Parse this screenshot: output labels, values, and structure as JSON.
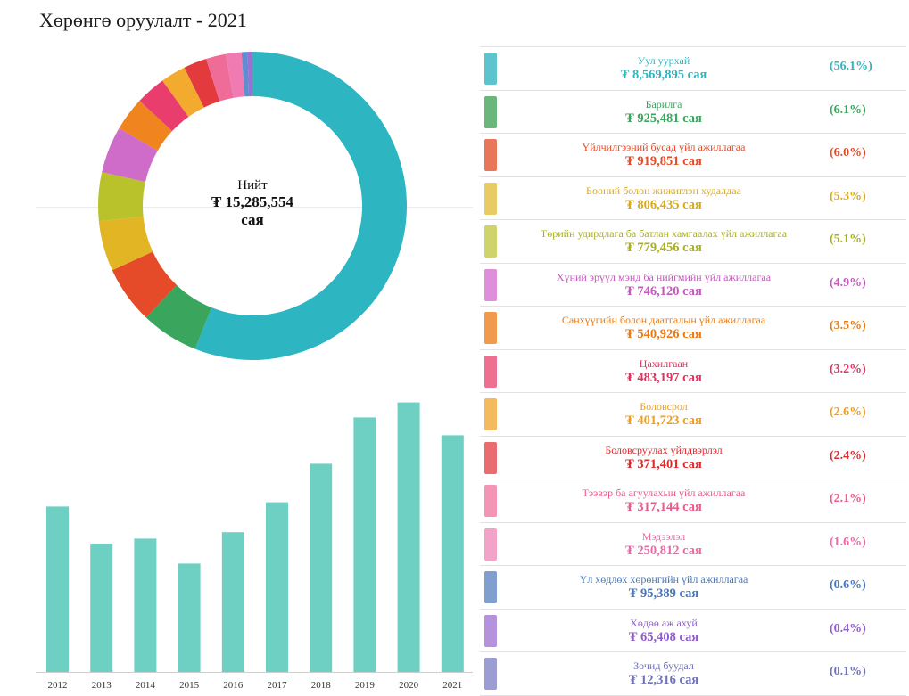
{
  "page": {
    "title": "Хөрөнгө оруулалт - 2021"
  },
  "total": {
    "label": "Нийт",
    "value": "₮ 15,285,554",
    "unit": "сая"
  },
  "chart_data": [
    {
      "type": "pie",
      "categories": [
        "Уул уурхай",
        "Барилга",
        "Үйлчилгээний бусад үйл ажиллагаа",
        "Бөөний болон жижиглэн худалдаа",
        "Төрийн удирдлага ба батлан хамгаалах үйл ажиллагаа",
        "Хүний эрүүл мэнд ба нийгмийн үйл ажиллагаа",
        "Санхүүгийн болон даатгалын үйл ажиллагаа",
        "Цахилгаан",
        "Боловсрол",
        "Боловсруулах үйлдвэрлэл",
        "Тээвэр ба агуулахын үйл ажиллагаа",
        "Мэдээлэл",
        "Үл хөдлөх хөрөнгийн үйл ажиллагаа",
        "Хөдөө аж ахуй",
        "Зочид буудал"
      ],
      "values": [
        8569895,
        925481,
        919851,
        806435,
        779456,
        746120,
        540926,
        483197,
        401723,
        371401,
        317144,
        250812,
        95389,
        65408,
        12316
      ],
      "colors": [
        "#2db6c2",
        "#3aa55d",
        "#e54a29",
        "#e2b524",
        "#b9c22a",
        "#cf6bc8",
        "#f0851f",
        "#e93e6d",
        "#f2aa2f",
        "#e33b3d",
        "#ef6b98",
        "#f07ab2",
        "#5c8ed0",
        "#9d6fd6",
        "#8588c9"
      ]
    },
    {
      "type": "bar",
      "categories": [
        "2012",
        "2013",
        "2014",
        "2015",
        "2016",
        "2017",
        "2018",
        "2019",
        "2020",
        "2021"
      ],
      "values": [
        11600,
        9000,
        9350,
        7600,
        9800,
        11900,
        14600,
        17850,
        18900,
        16600
      ],
      "ylim": [
        0,
        20000
      ],
      "color": "#6ecfc3"
    }
  ],
  "legend": [
    {
      "name": "Уул уурхай",
      "amount": "₮ 8,569,895 сая",
      "pct": "(56.1%)",
      "color": "#2db6c2",
      "swatch": "#5cc4cd"
    },
    {
      "name": "Барилга",
      "amount": "₮ 925,481 сая",
      "pct": "(6.1%)",
      "color": "#3aa55d",
      "swatch": "#6ab67b"
    },
    {
      "name": "Үйлчилгээний бусад үйл ажиллагаа",
      "amount": "₮ 919,851 сая",
      "pct": "(6.0%)",
      "color": "#e54a29",
      "swatch": "#ea7659"
    },
    {
      "name": "Бөөний болон жижиглэн худалдаа",
      "amount": "₮ 806,435 сая",
      "pct": "(5.3%)",
      "color": "#d9aa1c",
      "swatch": "#e6cc62"
    },
    {
      "name": "Төрийн удирдлага ба батлан хамгаалах үйл ажиллагаа",
      "amount": "₮ 779,456 сая",
      "pct": "(5.1%)",
      "color": "#a9b21e",
      "swatch": "#cfd46a"
    },
    {
      "name": "Хүний эрүүл мэнд ба нийгмийн үйл ажиллагаа",
      "amount": "₮ 746,120 сая",
      "pct": "(4.9%)",
      "color": "#c458bd",
      "swatch": "#df8fd9"
    },
    {
      "name": "Санхүүгийн болон даатгалын үйл ажиллагаа",
      "amount": "₮ 540,926 сая",
      "pct": "(3.5%)",
      "color": "#ea7a12",
      "swatch": "#f29a4c"
    },
    {
      "name": "Цахилгаан",
      "amount": "₮ 483,197 сая",
      "pct": "(3.2%)",
      "color": "#e3305f",
      "swatch": "#ee6f8f"
    },
    {
      "name": "Боловсрол",
      "amount": "₮ 401,723 сая",
      "pct": "(2.6%)",
      "color": "#ef9e1d",
      "swatch": "#f4ba5e"
    },
    {
      "name": "Боловсруулах үйлдвэрлэл",
      "amount": "₮ 371,401 сая",
      "pct": "(2.4%)",
      "color": "#dc2a2d",
      "swatch": "#ea6c6e"
    },
    {
      "name": "Тээвэр ба агуулахын үйл ажиллагаа",
      "amount": "₮ 317,144 сая",
      "pct": "(2.1%)",
      "color": "#ea5a8a",
      "swatch": "#f495b5"
    },
    {
      "name": "Мэдээлэл",
      "amount": "₮ 250,812 сая",
      "pct": "(1.6%)",
      "color": "#ec6aa7",
      "swatch": "#f3a3c8"
    },
    {
      "name": "Үл хөдлөх хөрөнгийн үйл ажиллагаа",
      "amount": "₮ 95,389 сая",
      "pct": "(0.6%)",
      "color": "#4577bf",
      "swatch": "#7fa0cf"
    },
    {
      "name": "Хөдөө аж ахуй",
      "amount": "₮ 65,408 сая",
      "pct": "(0.4%)",
      "color": "#8e5dcb",
      "swatch": "#b691dc"
    },
    {
      "name": "Зочид буудал",
      "amount": "₮ 12,316 сая",
      "pct": "(0.1%)",
      "color": "#6f72b8",
      "swatch": "#9c9ed3"
    }
  ]
}
